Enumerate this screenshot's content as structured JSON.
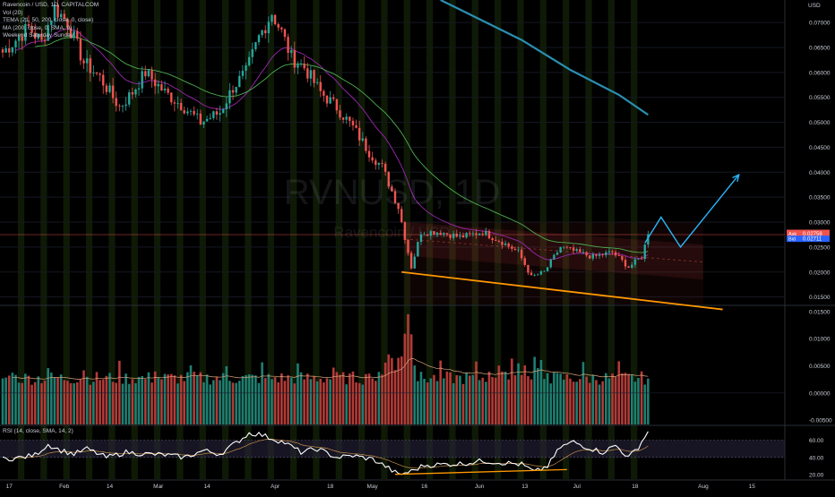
{
  "header": {
    "symbol_line": "Ravencoin / USD, 1D, CAPITALCOM",
    "indicators": [
      "Vol (20)",
      "TEMA (21, 50, 200, close, 0, close)",
      "MA (200, close, 0, SMA, 9)",
      "Weekend Saturday Sunday"
    ],
    "currency": "USD"
  },
  "watermark": {
    "line1": "RVNUSD, 1D",
    "line2": "Ravencoin / USD"
  },
  "rsi_legend": "RSI (14, close, SMA, 14, 2)",
  "price_tags": {
    "ask_label": "Ask",
    "ask_value": "0.02758",
    "bid_label": "Bid",
    "bid_value": "0.02711"
  },
  "colors": {
    "up": "#26a69a",
    "down": "#ef5350",
    "tema_purple": "#9c27b0",
    "ma_green": "#4caf50",
    "teal_line": "#2a8fb0",
    "projection": "#29b6f6",
    "support": "#ff9800",
    "rsi_line": "#ffffff",
    "rsi_band": "#2a2440"
  },
  "chart_data": [
    {
      "type": "candlestick",
      "title": "Ravencoin / USD, 1D, CAPITALCOM",
      "x_labels": [
        "17",
        "Feb",
        "14",
        "Mar",
        "14",
        "Apr",
        "18",
        "May",
        "16",
        "Jun",
        "13",
        "Jul",
        "18",
        "Aug",
        "15"
      ],
      "price_ticks": [
        "0.07000",
        "0.06500",
        "0.06000",
        "0.05500",
        "0.05000",
        "0.04500",
        "0.04000",
        "0.03500",
        "0.03000",
        "0.02500",
        "0.02000",
        "0.01500"
      ],
      "ylim": [
        0.0135,
        0.0745
      ],
      "anchors": [
        [
          0,
          0.064
        ],
        [
          8,
          0.069
        ],
        [
          12,
          0.066
        ],
        [
          16,
          0.073
        ],
        [
          20,
          0.07
        ],
        [
          25,
          0.062
        ],
        [
          30,
          0.059
        ],
        [
          36,
          0.053
        ],
        [
          40,
          0.056
        ],
        [
          44,
          0.06
        ],
        [
          50,
          0.056
        ],
        [
          56,
          0.053
        ],
        [
          61,
          0.05
        ],
        [
          67,
          0.052
        ],
        [
          71,
          0.057
        ],
        [
          75,
          0.06
        ],
        [
          79,
          0.067
        ],
        [
          83,
          0.072
        ],
        [
          86,
          0.068
        ],
        [
          89,
          0.063
        ],
        [
          93,
          0.061
        ],
        [
          98,
          0.056
        ],
        [
          103,
          0.053
        ],
        [
          108,
          0.049
        ],
        [
          113,
          0.044
        ],
        [
          117,
          0.041
        ],
        [
          122,
          0.033
        ],
        [
          126,
          0.021
        ],
        [
          129,
          0.028
        ],
        [
          135,
          0.028
        ],
        [
          141,
          0.027
        ],
        [
          148,
          0.028
        ],
        [
          154,
          0.026
        ],
        [
          159,
          0.024
        ],
        [
          163,
          0.019
        ],
        [
          167,
          0.02
        ],
        [
          172,
          0.025
        ],
        [
          177,
          0.024
        ],
        [
          182,
          0.023
        ],
        [
          188,
          0.024
        ],
        [
          193,
          0.021
        ],
        [
          197,
          0.023
        ],
        [
          199,
          0.02758
        ]
      ],
      "last_price": 0.02758,
      "annotations": [
        {
          "type": "support-line",
          "from": [
            123,
            0.02
          ],
          "to": [
            222,
            0.0125
          ]
        },
        {
          "type": "channel",
          "top": [
            [
              124,
              0.03
            ],
            [
              216,
              0.0255
            ]
          ],
          "bottom": [
            [
              124,
              0.0233
            ],
            [
              216,
              0.0185
            ]
          ]
        },
        {
          "type": "projection",
          "points": [
            [
              198,
              0.0258
            ],
            [
              203,
              0.031
            ],
            [
              209,
              0.025
            ],
            [
              227,
              0.0395
            ]
          ]
        },
        {
          "type": "resistance",
          "value": 0.0275
        }
      ]
    },
    {
      "type": "bar",
      "title": "Vol (20)",
      "y_ticks": [
        "0.01500",
        "0.01000",
        "0.00500",
        "0.00000",
        "-0.00500"
      ],
      "ylim": [
        -0.0058,
        0.0158
      ],
      "peak_values": [
        0.0145,
        0.0125,
        0.0095
      ]
    },
    {
      "type": "line",
      "title": "RSI (14, close, SMA, 14, 2)",
      "y_ticks": [
        "60.00",
        "40.00",
        "20.00"
      ],
      "ylim": [
        15,
        75
      ],
      "anchors": [
        [
          0,
          38
        ],
        [
          6,
          40
        ],
        [
          10,
          43
        ],
        [
          14,
          55
        ],
        [
          18,
          48
        ],
        [
          22,
          44
        ],
        [
          26,
          50
        ],
        [
          32,
          40
        ],
        [
          38,
          46
        ],
        [
          44,
          44
        ],
        [
          50,
          43
        ],
        [
          56,
          40
        ],
        [
          62,
          48
        ],
        [
          67,
          44
        ],
        [
          72,
          57
        ],
        [
          76,
          68
        ],
        [
          79,
          67
        ],
        [
          83,
          62
        ],
        [
          87,
          57
        ],
        [
          92,
          46
        ],
        [
          97,
          50
        ],
        [
          103,
          40
        ],
        [
          108,
          42
        ],
        [
          114,
          38
        ],
        [
          118,
          30
        ],
        [
          122,
          20
        ],
        [
          126,
          24
        ],
        [
          130,
          31
        ],
        [
          136,
          32
        ],
        [
          142,
          33
        ],
        [
          148,
          36
        ],
        [
          154,
          34
        ],
        [
          160,
          32
        ],
        [
          164,
          23
        ],
        [
          168,
          30
        ],
        [
          172,
          52
        ],
        [
          176,
          58
        ],
        [
          180,
          52
        ],
        [
          185,
          46
        ],
        [
          189,
          54
        ],
        [
          193,
          40
        ],
        [
          196,
          52
        ],
        [
          199,
          70
        ]
      ]
    }
  ]
}
